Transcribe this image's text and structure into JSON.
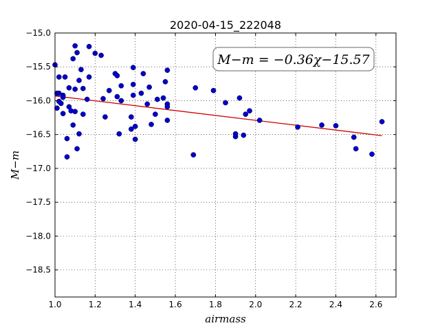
{
  "chart_data": {
    "type": "scatter",
    "title": "2020-04-15_222048",
    "xlabel": "airmass",
    "ylabel": "M−m",
    "xlim": [
      1.0,
      2.7
    ],
    "ylim": [
      -15.0,
      -18.9
    ],
    "y_inverted": true,
    "grid": true,
    "grid_style": "dotted",
    "xticks": [
      1.0,
      1.2,
      1.4,
      1.6,
      1.8,
      2.0,
      2.2,
      2.4,
      2.6
    ],
    "xtick_labels": [
      "1.0",
      "1.2",
      "1.4",
      "1.6",
      "1.8",
      "2.0",
      "2.2",
      "2.4",
      "2.6"
    ],
    "yticks": [
      -15.0,
      -15.5,
      -16.0,
      -16.5,
      -17.0,
      -17.5,
      -18.0,
      -18.5
    ],
    "ytick_labels": [
      "−15.0",
      "−15.5",
      "−16.0",
      "−16.5",
      "−17.0",
      "−17.5",
      "−18.0",
      "−18.5"
    ],
    "annotation": "M−m = −0.36χ−15.57",
    "annotation_position": "top-right",
    "fit_line": {
      "slope": -0.36,
      "intercept": -15.57,
      "x_range": [
        1.0,
        2.63
      ],
      "color": "#cc0000"
    },
    "marker_color": "#0000cc",
    "points": [
      [
        1.0,
        -15.47
      ],
      [
        1.01,
        -15.89
      ],
      [
        1.01,
        -16.11
      ],
      [
        1.02,
        -15.65
      ],
      [
        1.02,
        -15.89
      ],
      [
        1.02,
        -16.01
      ],
      [
        1.03,
        -16.04
      ],
      [
        1.04,
        -15.92
      ],
      [
        1.04,
        -15.95
      ],
      [
        1.04,
        -16.19
      ],
      [
        1.05,
        -15.65
      ],
      [
        1.06,
        -16.56
      ],
      [
        1.06,
        -16.83
      ],
      [
        1.07,
        -15.81
      ],
      [
        1.07,
        -16.09
      ],
      [
        1.08,
        -16.15
      ],
      [
        1.09,
        -15.38
      ],
      [
        1.09,
        -16.36
      ],
      [
        1.1,
        -15.19
      ],
      [
        1.1,
        -15.83
      ],
      [
        1.1,
        -16.16
      ],
      [
        1.11,
        -15.29
      ],
      [
        1.11,
        -16.71
      ],
      [
        1.12,
        -15.7
      ],
      [
        1.12,
        -16.49
      ],
      [
        1.13,
        -15.54
      ],
      [
        1.14,
        -15.82
      ],
      [
        1.14,
        -16.2
      ],
      [
        1.16,
        -15.98
      ],
      [
        1.17,
        -15.2
      ],
      [
        1.17,
        -15.65
      ],
      [
        1.2,
        -15.3
      ],
      [
        1.23,
        -15.33
      ],
      [
        1.24,
        -15.97
      ],
      [
        1.25,
        -16.24
      ],
      [
        1.27,
        -15.85
      ],
      [
        1.3,
        -15.6
      ],
      [
        1.31,
        -15.63
      ],
      [
        1.31,
        -15.94
      ],
      [
        1.32,
        -16.49
      ],
      [
        1.33,
        -15.78
      ],
      [
        1.33,
        -16.0
      ],
      [
        1.38,
        -16.24
      ],
      [
        1.38,
        -16.42
      ],
      [
        1.39,
        -15.51
      ],
      [
        1.39,
        -15.76
      ],
      [
        1.39,
        -15.92
      ],
      [
        1.4,
        -16.38
      ],
      [
        1.4,
        -16.57
      ],
      [
        1.43,
        -15.89
      ],
      [
        1.44,
        -15.6
      ],
      [
        1.46,
        -16.05
      ],
      [
        1.47,
        -15.8
      ],
      [
        1.48,
        -16.35
      ],
      [
        1.5,
        -16.2
      ],
      [
        1.51,
        -15.98
      ],
      [
        1.54,
        -15.96
      ],
      [
        1.55,
        -15.72
      ],
      [
        1.56,
        -15.55
      ],
      [
        1.56,
        -16.05
      ],
      [
        1.56,
        -16.09
      ],
      [
        1.56,
        -16.29
      ],
      [
        1.69,
        -16.8
      ],
      [
        1.7,
        -15.81
      ],
      [
        1.79,
        -15.85
      ],
      [
        1.85,
        -16.03
      ],
      [
        1.9,
        -16.53
      ],
      [
        1.9,
        -16.49
      ],
      [
        1.92,
        -15.96
      ],
      [
        1.94,
        -16.51
      ],
      [
        1.95,
        -16.2
      ],
      [
        1.97,
        -16.15
      ],
      [
        2.02,
        -16.29
      ],
      [
        2.21,
        -16.39
      ],
      [
        2.33,
        -16.36
      ],
      [
        2.4,
        -16.37
      ],
      [
        2.49,
        -16.54
      ],
      [
        2.5,
        -16.71
      ],
      [
        2.58,
        -16.79
      ],
      [
        2.63,
        -16.31
      ]
    ]
  }
}
